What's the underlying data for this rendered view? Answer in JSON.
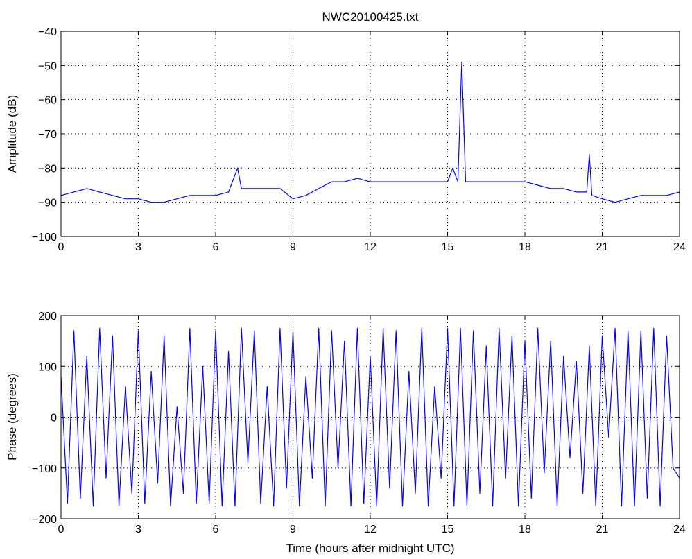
{
  "chart_data": [
    {
      "type": "line",
      "title": "NWC20100425.txt",
      "xlabel": "",
      "ylabel": "Amplitude (dB)",
      "xlim": [
        0,
        24
      ],
      "ylim": [
        -100,
        -40
      ],
      "xticks": [
        0,
        3,
        6,
        9,
        12,
        15,
        18,
        21,
        24
      ],
      "yticks": [
        -100,
        -90,
        -80,
        -70,
        -60,
        -50,
        -40
      ],
      "grid": true,
      "line_color": "#0000ff",
      "series": [
        {
          "x": [
            0,
            0.5,
            1,
            1.5,
            2,
            2.5,
            3,
            3.5,
            4,
            4.5,
            5,
            5.5,
            6,
            6.5,
            6.85,
            7,
            7.5,
            8,
            8.5,
            9,
            9.5,
            10,
            10.5,
            11,
            11.5,
            12,
            12.5,
            13,
            13.5,
            14,
            14.5,
            15,
            15.2,
            15.4,
            15.55,
            15.7,
            16,
            16.5,
            17,
            17.5,
            18,
            18.5,
            19,
            19.5,
            20,
            20.4,
            20.5,
            20.6,
            21,
            21.5,
            22,
            22.5,
            23,
            23.5,
            24
          ],
          "y": [
            -88,
            -87,
            -86,
            -87,
            -88,
            -89,
            -89,
            -90,
            -90,
            -89,
            -88,
            -88,
            -88,
            -87,
            -80,
            -86,
            -86,
            -86,
            -86,
            -89,
            -88,
            -86,
            -84,
            -84,
            -83,
            -84,
            -84,
            -84,
            -84,
            -84,
            -84,
            -84,
            -80,
            -84,
            -49,
            -84,
            -84,
            -84,
            -84,
            -84,
            -84,
            -85,
            -86,
            -86,
            -87,
            -87,
            -76,
            -88,
            -89,
            -90,
            -89,
            -88,
            -88,
            -88,
            -87
          ]
        }
      ]
    },
    {
      "type": "line",
      "title": "",
      "xlabel": "Time (hours after midnight UTC)",
      "ylabel": "Phase (degrees)",
      "xlim": [
        0,
        24
      ],
      "ylim": [
        -200,
        200
      ],
      "xticks": [
        0,
        3,
        6,
        9,
        12,
        15,
        18,
        21,
        24
      ],
      "yticks": [
        -200,
        -100,
        0,
        100,
        200
      ],
      "grid": true,
      "line_color": "#0000ff",
      "series": [
        {
          "x": [
            0,
            0.25,
            0.5,
            0.75,
            1,
            1.25,
            1.5,
            1.75,
            2,
            2.25,
            2.5,
            2.75,
            3,
            3.25,
            3.5,
            3.75,
            4,
            4.25,
            4.5,
            4.75,
            5,
            5.25,
            5.5,
            5.75,
            6,
            6.25,
            6.5,
            6.75,
            7,
            7.25,
            7.5,
            7.75,
            8,
            8.25,
            8.5,
            8.75,
            9,
            9.25,
            9.5,
            9.75,
            10,
            10.25,
            10.5,
            10.75,
            11,
            11.25,
            11.5,
            11.75,
            12,
            12.25,
            12.5,
            12.75,
            13,
            13.25,
            13.5,
            13.75,
            14,
            14.25,
            14.5,
            14.75,
            15,
            15.25,
            15.5,
            15.75,
            16,
            16.25,
            16.5,
            16.75,
            17,
            17.25,
            17.5,
            17.75,
            18,
            18.25,
            18.5,
            18.75,
            19,
            19.25,
            19.5,
            19.75,
            20,
            20.25,
            20.5,
            20.75,
            21,
            21.25,
            21.5,
            21.75,
            22,
            22.25,
            22.5,
            22.75,
            23,
            23.25,
            23.5,
            23.75,
            24
          ],
          "y": [
            80,
            -170,
            170,
            -160,
            120,
            -175,
            175,
            -120,
            160,
            -175,
            60,
            -150,
            170,
            -170,
            90,
            -130,
            160,
            -175,
            20,
            -150,
            175,
            -170,
            100,
            -170,
            170,
            -175,
            130,
            -175,
            175,
            -90,
            170,
            -170,
            60,
            -175,
            175,
            -140,
            170,
            -175,
            80,
            -120,
            175,
            -175,
            170,
            -100,
            150,
            -175,
            175,
            -170,
            120,
            -175,
            175,
            -140,
            170,
            -175,
            90,
            -150,
            175,
            -175,
            60,
            -120,
            175,
            -175,
            175,
            -175,
            170,
            -150,
            140,
            -175,
            175,
            -120,
            160,
            -175,
            150,
            -160,
            175,
            -110,
            150,
            -175,
            120,
            -80,
            110,
            -150,
            140,
            -175,
            160,
            -40,
            175,
            -175,
            170,
            -175,
            170,
            -160,
            175,
            -175,
            160,
            -100,
            -120
          ]
        }
      ]
    }
  ]
}
